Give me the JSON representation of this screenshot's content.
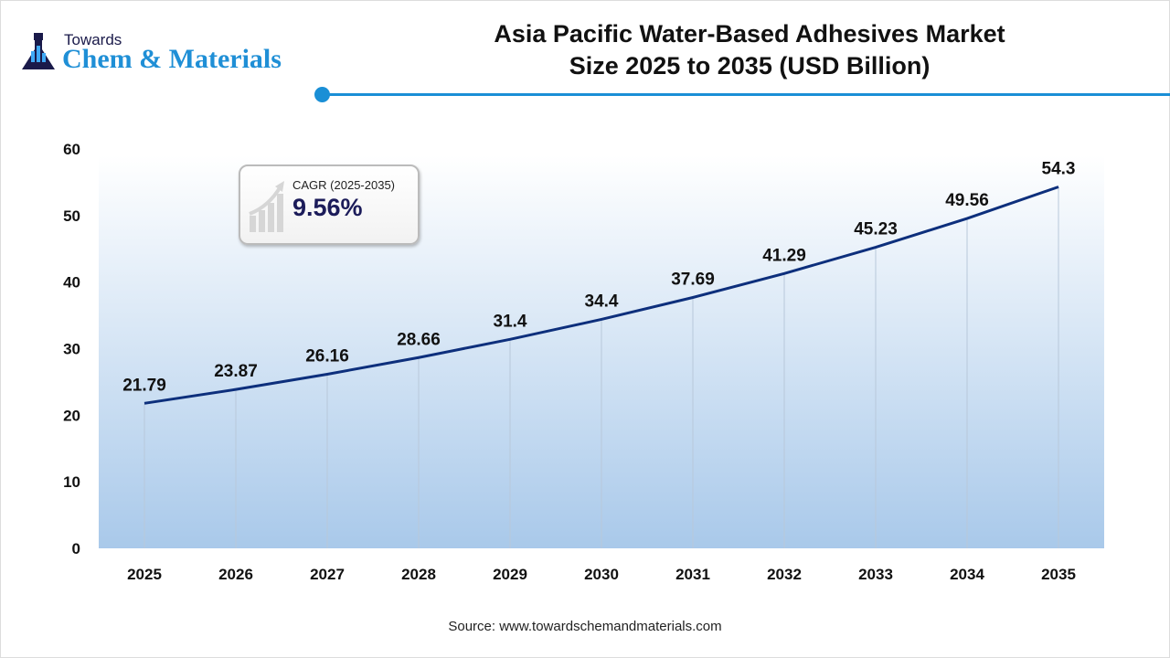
{
  "logo": {
    "line1": "Towards",
    "line2": "Chem & Materials"
  },
  "header": {
    "title_line1": "Asia Pacific Water-Based Adhesives Market",
    "title_line2": "Size 2025 to 2035 (USD Billion)"
  },
  "cagr": {
    "label": "CAGR (2025-2035)",
    "value": "9.56%",
    "icon": "growth-chart-icon"
  },
  "source": "Source: www.towardschemandmaterials.com",
  "colors": {
    "line": "#0d2f7c",
    "accent": "#1a8fd6",
    "area_bottom": "#a9c9ea"
  },
  "chart_data": {
    "type": "line",
    "title": "Asia Pacific Water-Based Adhesives Market Size 2025 to 2035 (USD Billion)",
    "categories": [
      "2025",
      "2026",
      "2027",
      "2028",
      "2029",
      "2030",
      "2031",
      "2032",
      "2033",
      "2034",
      "2035"
    ],
    "values": [
      21.79,
      23.87,
      26.16,
      28.66,
      31.4,
      34.4,
      37.69,
      41.29,
      45.23,
      49.56,
      54.3
    ],
    "data_labels": [
      "21.79",
      "23.87",
      "26.16",
      "28.66",
      "31.4",
      "34.4",
      "37.69",
      "41.29",
      "45.23",
      "49.56",
      "54.3"
    ],
    "ylim": [
      0,
      60
    ],
    "yticks": [
      "0",
      "10",
      "20",
      "30",
      "40",
      "50",
      "60"
    ],
    "grid": "vertical lines at categories",
    "legend": "none"
  }
}
